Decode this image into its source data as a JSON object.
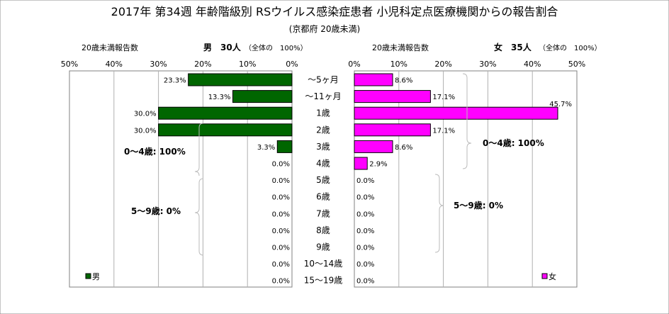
{
  "chart_data": {
    "type": "bar",
    "title": "2017年 第34週 年齢階級別 RSウイルス感染症患者 小児科定点医療機関からの報告割合",
    "subtitle": "(京都府 20歳未満)",
    "categories": [
      "～5ヶ月",
      "～11ヶ月",
      "1歳",
      "2歳",
      "3歳",
      "4歳",
      "5歳",
      "6歳",
      "7歳",
      "8歳",
      "9歳",
      "10～14歳",
      "15～19歳"
    ],
    "xlim": [
      0,
      50
    ],
    "x_ticks": [
      "50%",
      "40%",
      "30%",
      "20%",
      "10%",
      "0%"
    ],
    "x_ticks_right": [
      "0%",
      "10%",
      "20%",
      "30%",
      "40%",
      "50%"
    ],
    "series": [
      {
        "name": "男",
        "side": "left",
        "color": "#006600",
        "header_label": "20歳未満報告数",
        "header_count": "男　30人",
        "header_total": "（全体の　100%）",
        "values": [
          23.3,
          13.3,
          30.0,
          30.0,
          3.3,
          0.0,
          0.0,
          0.0,
          0.0,
          0.0,
          0.0,
          0.0,
          0.0
        ],
        "labels": [
          "23.3%",
          "13.3%",
          "30.0%",
          "30.0%",
          "3.3%",
          "0.0%",
          "0.0%",
          "0.0%",
          "0.0%",
          "0.0%",
          "0.0%",
          "0.0%",
          "0.0%"
        ]
      },
      {
        "name": "女",
        "side": "right",
        "color": "#ff00ff",
        "header_label": "20歳未満報告数",
        "header_count": "女　35人",
        "header_total": "（全体の　100%）",
        "values": [
          8.6,
          17.1,
          45.7,
          17.1,
          8.6,
          2.9,
          0.0,
          0.0,
          0.0,
          0.0,
          0.0,
          0.0,
          0.0
        ],
        "labels": [
          "8.6%",
          "17.1%",
          "45.7%",
          "17.1%",
          "8.6%",
          "2.9%",
          "0.0%",
          "0.0%",
          "0.0%",
          "0.0%",
          "0.0%",
          "0.0%",
          "0.0%"
        ]
      }
    ],
    "annotations": {
      "male_0_4": "0～4歳: 100%",
      "male_5_9": "5～9歳: 0%",
      "female_0_4": "0～4歳: 100%",
      "female_5_9": "5～9歳: 0%"
    },
    "legend": {
      "male": "男",
      "female": "女",
      "placement": "bottom-left / bottom-right"
    },
    "grid": true
  }
}
